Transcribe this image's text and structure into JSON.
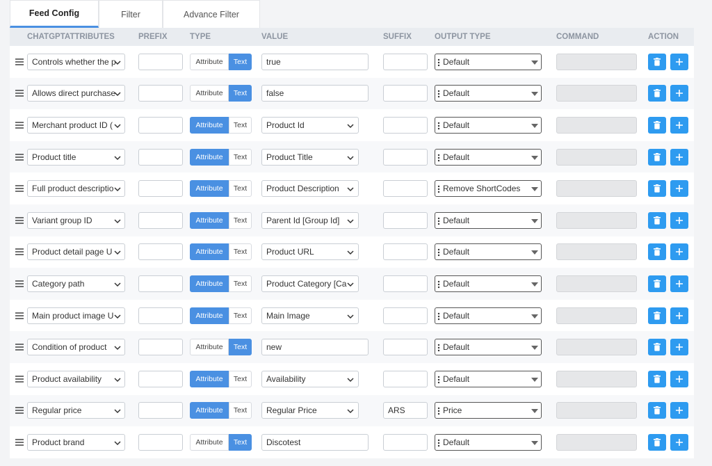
{
  "tabs": [
    "Feed Config",
    "Filter",
    "Advance Filter"
  ],
  "active_tab": 0,
  "columns": [
    "CHATGPTATTRIBUTES",
    "PREFIX",
    "TYPE",
    "VALUE",
    "SUFFIX",
    "OUTPUT TYPE",
    "COMMAND",
    "ACTION"
  ],
  "type_options": [
    "Attribute",
    "Text"
  ],
  "rows": [
    {
      "attribute": "Controls whether the p",
      "type": "Text",
      "value": "true",
      "output": "Default"
    },
    {
      "attribute": "Allows direct purchase",
      "type": "Text",
      "value": "false",
      "output": "Default"
    },
    {
      "attribute": "Merchant product ID (",
      "type": "Attribute",
      "value": "Product Id",
      "output": "Default"
    },
    {
      "attribute": "Product title",
      "type": "Attribute",
      "value": "Product Title",
      "output": "Default"
    },
    {
      "attribute": "Full product descriptio",
      "type": "Attribute",
      "value": "Product Description",
      "output": "Remove ShortCodes"
    },
    {
      "attribute": "Variant group ID",
      "type": "Attribute",
      "value": "Parent Id [Group Id]",
      "output": "Default"
    },
    {
      "attribute": "Product detail page U",
      "type": "Attribute",
      "value": "Product URL",
      "output": "Default"
    },
    {
      "attribute": "Category path",
      "type": "Attribute",
      "value": "Product Category [Ca",
      "output": "Default"
    },
    {
      "attribute": "Main product image U",
      "type": "Attribute",
      "value": "Main Image",
      "output": "Default"
    },
    {
      "attribute": "Condition of product",
      "type": "Text",
      "value": "new",
      "output": "Default"
    },
    {
      "attribute": "Product availability",
      "type": "Attribute",
      "value": "Availability",
      "output": "Default"
    },
    {
      "attribute": "Regular price",
      "type": "Attribute",
      "value": "Regular Price",
      "suffix": "ARS",
      "output": "Price"
    },
    {
      "attribute": "Product brand",
      "type": "Text",
      "value": "Discotest",
      "output": "Default"
    }
  ]
}
